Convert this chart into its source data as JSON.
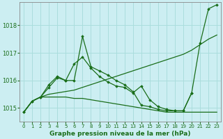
{
  "title": "Graphe pression niveau de la mer (hPa)",
  "background_color": "#cceef2",
  "grid_color": "#aadddd",
  "line_color": "#1a6e1a",
  "xlim": [
    -0.5,
    23.5
  ],
  "ylim": [
    1014.5,
    1018.85
  ],
  "xticks": [
    0,
    1,
    2,
    3,
    4,
    5,
    6,
    7,
    8,
    9,
    10,
    11,
    12,
    13,
    14,
    15,
    16,
    17,
    18,
    19,
    20,
    21,
    22,
    23
  ],
  "yticks": [
    1015,
    1016,
    1017,
    1018
  ],
  "series": [
    {
      "x": [
        0,
        1,
        2,
        3,
        4,
        5,
        6,
        7,
        8,
        9,
        10,
        11,
        12,
        13,
        14,
        15,
        16,
        17,
        18,
        19,
        20,
        21,
        22,
        23
      ],
      "y": [
        1014.85,
        1015.25,
        1015.4,
        1015.5,
        1015.55,
        1015.6,
        1015.65,
        1015.75,
        1015.85,
        1015.95,
        1016.05,
        1016.15,
        1016.25,
        1016.35,
        1016.45,
        1016.55,
        1016.65,
        1016.75,
        1016.85,
        1016.95,
        1017.1,
        1017.3,
        1017.5,
        1017.65
      ],
      "marker": false
    },
    {
      "x": [
        0,
        1,
        2,
        3,
        4,
        5,
        6,
        7,
        8,
        9,
        10,
        11,
        12,
        13,
        14,
        15,
        16,
        17,
        18,
        19,
        20,
        21,
        22,
        23
      ],
      "y": [
        1014.85,
        1015.25,
        1015.4,
        1015.75,
        1016.1,
        1016.0,
        1016.6,
        1016.85,
        1016.45,
        1016.15,
        1015.95,
        1015.8,
        1015.75,
        1015.55,
        1015.8,
        1015.3,
        1015.05,
        1014.95,
        1014.9,
        1014.9,
        1015.55,
        null,
        null,
        null
      ],
      "marker": true
    },
    {
      "x": [
        0,
        1,
        2,
        3,
        4,
        5,
        6,
        7,
        8,
        9,
        10,
        11,
        12,
        13,
        14,
        15,
        16,
        17,
        18,
        19,
        20,
        21,
        22,
        23
      ],
      "y": [
        1014.85,
        1015.25,
        1015.4,
        1015.85,
        1016.15,
        1016.0,
        1016.0,
        1017.6,
        1016.5,
        1016.35,
        1016.2,
        1016.0,
        1015.85,
        1015.6,
        1015.1,
        1015.05,
        1014.95,
        1014.9,
        1014.9,
        1014.9,
        1015.55,
        1017.35,
        1018.6,
        1018.75
      ],
      "marker": true
    },
    {
      "x": [
        0,
        1,
        2,
        3,
        4,
        5,
        6,
        7,
        8,
        9,
        10,
        11,
        12,
        13,
        14,
        15,
        16,
        17,
        18,
        19,
        20,
        21,
        22,
        23
      ],
      "y": [
        1014.85,
        1015.25,
        1015.4,
        1015.4,
        1015.4,
        1015.4,
        1015.35,
        1015.35,
        1015.3,
        1015.25,
        1015.2,
        1015.15,
        1015.1,
        1015.05,
        1015.0,
        1014.95,
        1014.9,
        1014.85,
        1014.85,
        1014.85,
        1014.85,
        1014.85,
        1014.85,
        1014.85
      ],
      "marker": false
    }
  ]
}
